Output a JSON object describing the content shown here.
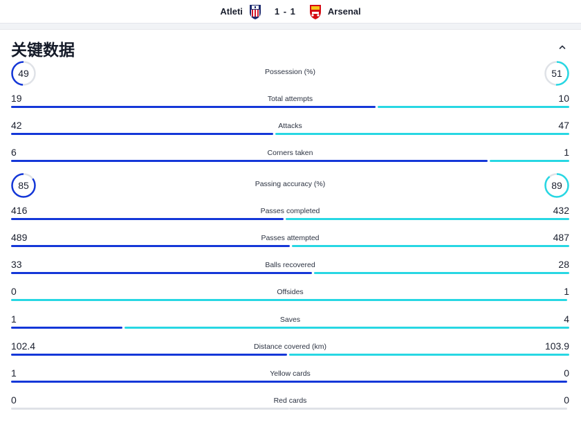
{
  "header": {
    "home_team": "Atleti",
    "away_team": "Arsenal",
    "score": "1 - 1"
  },
  "section": {
    "title": "关键数据"
  },
  "colors": {
    "home": "#1437d8",
    "away": "#27d7e3",
    "neutral": "#dfe2e7"
  },
  "stats": [
    {
      "type": "ring",
      "label": "Possession (%)",
      "home": "49",
      "away": "51"
    },
    {
      "type": "bar",
      "label": "Total attempts",
      "home": "19",
      "away": "10"
    },
    {
      "type": "bar",
      "label": "Attacks",
      "home": "42",
      "away": "47"
    },
    {
      "type": "bar",
      "label": "Corners taken",
      "home": "6",
      "away": "1"
    },
    {
      "type": "ring",
      "label": "Passing accuracy (%)",
      "home": "85",
      "away": "89"
    },
    {
      "type": "bar",
      "label": "Passes completed",
      "home": "416",
      "away": "432"
    },
    {
      "type": "bar",
      "label": "Passes attempted",
      "home": "489",
      "away": "487"
    },
    {
      "type": "bar",
      "label": "Balls recovered",
      "home": "33",
      "away": "28"
    },
    {
      "type": "bar",
      "label": "Offsides",
      "home": "0",
      "away": "1"
    },
    {
      "type": "bar",
      "label": "Saves",
      "home": "1",
      "away": "4"
    },
    {
      "type": "bar",
      "label": "Distance covered (km)",
      "home": "102.4",
      "away": "103.9"
    },
    {
      "type": "bar",
      "label": "Yellow cards",
      "home": "1",
      "away": "0"
    },
    {
      "type": "bar",
      "label": "Red cards",
      "home": "0",
      "away": "0"
    }
  ]
}
